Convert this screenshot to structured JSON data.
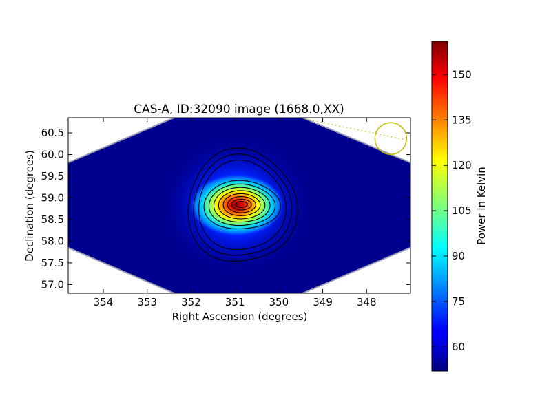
{
  "chart_data": {
    "type": "heatmap",
    "title": "CAS-A, ID:32090 image (1668.0,XX)",
    "xlabel": "Right Ascension (degrees)",
    "ylabel": "Declination (degrees)",
    "xlim": [
      354.8,
      347.0
    ],
    "ylim": [
      56.8,
      60.85
    ],
    "x_ticks": [
      354,
      353,
      352,
      351,
      350,
      349,
      348
    ],
    "x_tick_labels": [
      "354",
      "353",
      "352",
      "351",
      "350",
      "349",
      "348"
    ],
    "y_ticks": [
      57.0,
      57.5,
      58.0,
      58.5,
      59.0,
      59.5,
      60.0,
      60.5
    ],
    "y_tick_labels": [
      "57.0",
      "57.5",
      "58.0",
      "58.5",
      "59.0",
      "59.5",
      "60.0",
      "60.5"
    ],
    "source": {
      "ra": 350.85,
      "dec": 58.85,
      "peak": 160
    },
    "background_level": 53,
    "contours": 11,
    "beam_marker": {
      "ra": 347.45,
      "dec": 60.37,
      "color": "#bfbf00"
    },
    "colorbar": {
      "label": "Power in Kelvin",
      "min": 52,
      "max": 161,
      "ticks": [
        60,
        75,
        90,
        105,
        120,
        135,
        150
      ],
      "tick_labels": [
        "60",
        "75",
        "90",
        "105",
        "120",
        "135",
        "150"
      ],
      "colormap": "jet"
    },
    "grid": false,
    "legend": "none"
  }
}
